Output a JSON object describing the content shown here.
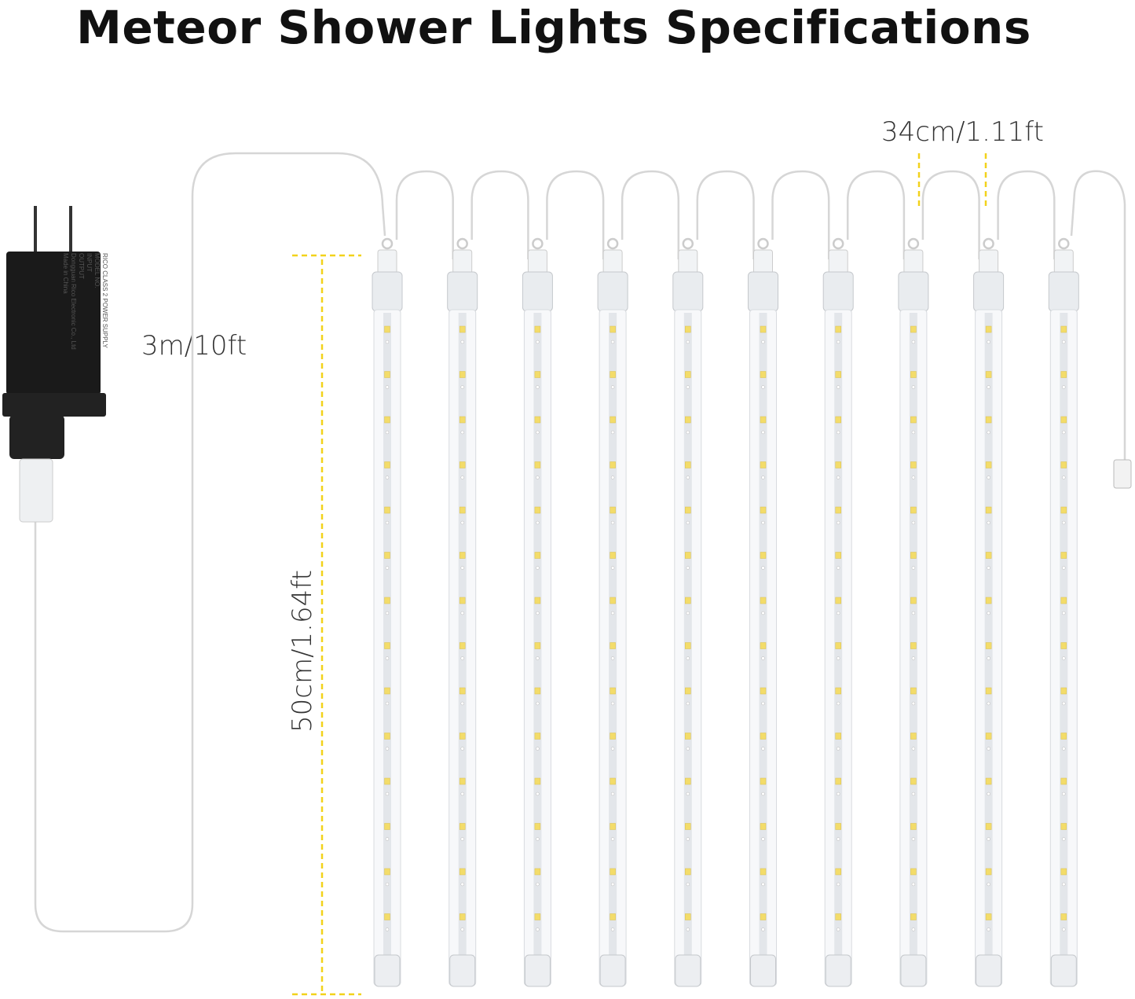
{
  "title": "Meteor Shower Lights Specifications",
  "dimensions": {
    "cable_length": "3m/10ft",
    "tube_length": "50cm/1.64ft",
    "tube_spacing": "34cm/1.11ft"
  },
  "product": {
    "tube_count": 10,
    "adapter_lines": [
      "RICO CLASS 2 POWER SUPPLY",
      "MODEL NO.",
      "INPUT",
      "OUTPUT",
      "Dongguan Rico Electronic Co., Ltd",
      "Made in China"
    ]
  },
  "colors": {
    "dimension_line": "#f2d21b",
    "led": "#f3dc6a",
    "adapter": "#1a1a1a"
  }
}
